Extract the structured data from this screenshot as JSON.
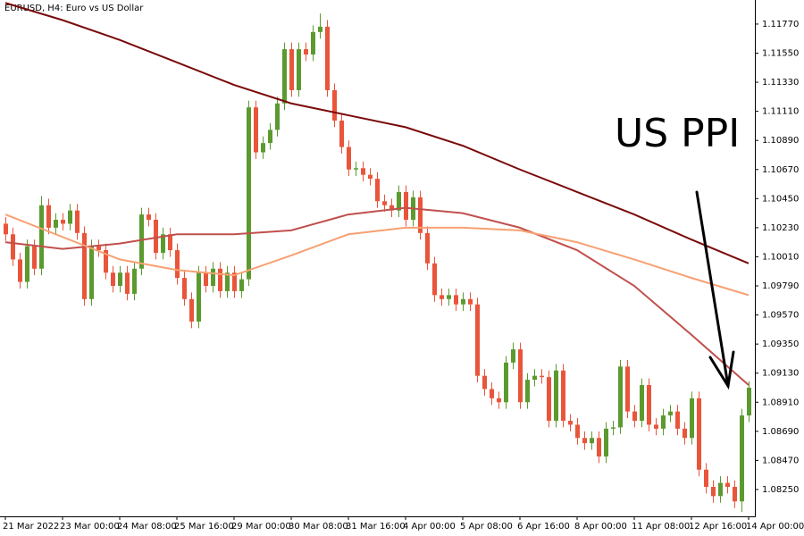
{
  "chart_data": {
    "type": "candlestick",
    "title": "EURUSD, H4:  Euro vs US Dollar",
    "annotation": "US PPI",
    "up_color": "#5b9a2f",
    "down_color": "#e9553a",
    "ylim": [
      1.08047,
      1.11952
    ],
    "xlim": [
      -0.75,
      104.875
    ],
    "yticks": [
      {
        "value": 1.1177,
        "label": "1.11770"
      },
      {
        "value": 1.1155,
        "label": "1.11550"
      },
      {
        "value": 1.1133,
        "label": "1.11330"
      },
      {
        "value": 1.1111,
        "label": "1.11110"
      },
      {
        "value": 1.1089,
        "label": "1.10890"
      },
      {
        "value": 1.1067,
        "label": "1.10670"
      },
      {
        "value": 1.1045,
        "label": "1.10450"
      },
      {
        "value": 1.1023,
        "label": "1.10230"
      },
      {
        "value": 1.1001,
        "label": "1.10010"
      },
      {
        "value": 1.0979,
        "label": "1.09790"
      },
      {
        "value": 1.0957,
        "label": "1.09570"
      },
      {
        "value": 1.0935,
        "label": "1.09350"
      },
      {
        "value": 1.0913,
        "label": "1.09130"
      },
      {
        "value": 1.0891,
        "label": "1.08910"
      },
      {
        "value": 1.0869,
        "label": "1.08690"
      },
      {
        "value": 1.0847,
        "label": "1.08470"
      },
      {
        "value": 1.0825,
        "label": "1.08250"
      }
    ],
    "xticks": [
      {
        "value": 0,
        "label": "21 Mar 2022"
      },
      {
        "value": 8,
        "label": "23 Mar 00:00"
      },
      {
        "value": 16,
        "label": "24 Mar 08:00"
      },
      {
        "value": 24,
        "label": "25 Mar 16:00"
      },
      {
        "value": 32,
        "label": "29 Mar 00:00"
      },
      {
        "value": 40,
        "label": "30 Mar 08:00"
      },
      {
        "value": 48,
        "label": "31 Mar 16:00"
      },
      {
        "value": 56,
        "label": "4 Apr 00:00"
      },
      {
        "value": 64,
        "label": "5 Apr 08:00"
      },
      {
        "value": 72,
        "label": "6 Apr 16:00"
      },
      {
        "value": 80,
        "label": "8 Apr 00:00"
      },
      {
        "value": 88,
        "label": "11 Apr 08:00"
      },
      {
        "value": 96,
        "label": "12 Apr 16:00"
      },
      {
        "value": 104,
        "label": "14 Apr 00:00"
      }
    ],
    "open": [
      1.1026,
      1.1018,
      1.0999,
      1.0982,
      1.1009,
      1.0992,
      1.104,
      1.1023,
      1.1029,
      1.1026,
      1.1036,
      1.1019,
      1.0969,
      1.1009,
      1.1006,
      1.0989,
      1.0979,
      1.0989,
      1.0973,
      1.0992,
      1.1033,
      1.1029,
      1.1004,
      1.1018,
      1.1006,
      1.0985,
      1.0969,
      1.0952,
      1.0989,
      1.0979,
      1.0992,
      1.0975,
      1.0989,
      1.0975,
      1.0984,
      1.1114,
      1.108,
      1.1087,
      1.1097,
      1.1117,
      1.1158,
      1.1127,
      1.1158,
      1.1154,
      1.1171,
      1.1175,
      1.1127,
      1.1104,
      1.1084,
      1.1067,
      1.1068,
      1.1063,
      1.106,
      1.1043,
      1.104,
      1.1036,
      1.105,
      1.1029,
      1.1046,
      1.1019,
      1.0996,
      1.0972,
      1.0969,
      1.0972,
      1.0965,
      1.0969,
      1.0965,
      1.0911,
      1.0901,
      1.0894,
      1.0891,
      1.0921,
      1.0931,
      1.0891,
      1.0908,
      1.0911,
      1.091,
      1.0877,
      1.0915,
      1.0877,
      1.0874,
      1.0864,
      1.086,
      1.0864,
      1.085,
      1.0871,
      1.0872,
      1.0918,
      1.0884,
      1.0877,
      1.0904,
      1.0874,
      1.0871,
      1.0881,
      1.0884,
      1.0871,
      1.0864,
      1.0894,
      1.084,
      1.0827,
      1.082,
      1.083,
      1.0827,
      1.0816,
      1.0881
    ],
    "high": [
      1.1031,
      1.1023,
      1.1004,
      1.1014,
      1.1014,
      1.1047,
      1.1045,
      1.1034,
      1.1034,
      1.1041,
      1.1041,
      1.1024,
      1.1014,
      1.1014,
      1.1011,
      1.0994,
      1.0994,
      1.0994,
      1.0997,
      1.1038,
      1.1038,
      1.1034,
      1.1023,
      1.1023,
      1.1011,
      1.099,
      1.0974,
      1.0994,
      1.0994,
      1.0997,
      1.0997,
      1.0994,
      1.0994,
      1.0989,
      1.1119,
      1.1119,
      1.1092,
      1.1102,
      1.1122,
      1.1163,
      1.1163,
      1.1163,
      1.1163,
      1.1176,
      1.1185,
      1.118,
      1.1132,
      1.1109,
      1.1089,
      1.1073,
      1.1073,
      1.1068,
      1.1065,
      1.1048,
      1.1045,
      1.1055,
      1.1055,
      1.1051,
      1.1051,
      1.1024,
      1.1001,
      1.0977,
      1.0977,
      1.0977,
      1.0974,
      1.0974,
      1.097,
      1.0916,
      1.0906,
      1.0899,
      1.0926,
      1.0936,
      1.0936,
      1.0913,
      1.0916,
      1.0916,
      1.0915,
      1.092,
      1.092,
      1.0882,
      1.0879,
      1.0869,
      1.0869,
      1.0869,
      1.0876,
      1.0877,
      1.0923,
      1.0923,
      1.0889,
      1.0909,
      1.0909,
      1.0879,
      1.0886,
      1.0889,
      1.0889,
      1.0876,
      1.0899,
      1.0899,
      1.0845,
      1.0832,
      1.0835,
      1.0835,
      1.0832,
      1.0886,
      1.0907
    ],
    "low": [
      1.1013,
      1.0994,
      1.0977,
      1.0977,
      1.0987,
      1.0987,
      1.1018,
      1.1018,
      1.1021,
      1.1021,
      1.1014,
      1.0964,
      1.0964,
      1.1001,
      1.0984,
      1.0974,
      1.0974,
      1.0968,
      1.0968,
      1.0987,
      1.1024,
      1.0999,
      1.0999,
      1.1001,
      1.098,
      1.0964,
      1.0947,
      1.0947,
      1.0974,
      1.0974,
      1.097,
      1.097,
      1.097,
      1.097,
      1.0979,
      1.1075,
      1.1075,
      1.1082,
      1.1092,
      1.1112,
      1.1122,
      1.1122,
      1.1149,
      1.1149,
      1.1166,
      1.1122,
      1.1099,
      1.1079,
      1.1062,
      1.1062,
      1.1058,
      1.1055,
      1.1038,
      1.1035,
      1.1031,
      1.1031,
      1.1024,
      1.1024,
      1.1014,
      1.0991,
      1.0967,
      1.0964,
      1.0964,
      1.096,
      1.096,
      1.096,
      1.0906,
      1.0896,
      1.0889,
      1.0886,
      1.0886,
      1.0916,
      1.0886,
      1.0886,
      1.0903,
      1.0905,
      1.0872,
      1.0872,
      1.0872,
      1.0869,
      1.0859,
      1.0855,
      1.0855,
      1.0845,
      1.0845,
      1.0866,
      1.0867,
      1.0879,
      1.0872,
      1.0872,
      1.0869,
      1.0866,
      1.0866,
      1.0876,
      1.0866,
      1.0859,
      1.0859,
      1.0835,
      1.0822,
      1.0815,
      1.0815,
      1.0822,
      1.0811,
      1.0808,
      1.0876
    ],
    "close": [
      1.1018,
      1.0999,
      1.0982,
      1.1009,
      1.0992,
      1.104,
      1.1023,
      1.1029,
      1.1026,
      1.1036,
      1.1019,
      1.0969,
      1.1009,
      1.1006,
      1.0989,
      1.0979,
      1.0989,
      1.0973,
      1.0992,
      1.1033,
      1.1029,
      1.1004,
      1.1018,
      1.1006,
      1.0985,
      1.0969,
      1.0952,
      1.0989,
      1.0979,
      1.0992,
      1.0975,
      1.0989,
      1.0975,
      1.0984,
      1.1114,
      1.108,
      1.1087,
      1.1097,
      1.1117,
      1.1158,
      1.1127,
      1.1158,
      1.1154,
      1.1171,
      1.1175,
      1.1127,
      1.1104,
      1.1084,
      1.1067,
      1.1068,
      1.1063,
      1.106,
      1.1043,
      1.104,
      1.1036,
      1.105,
      1.1029,
      1.1046,
      1.1019,
      1.0996,
      1.0972,
      1.0969,
      1.0972,
      1.0965,
      1.0969,
      1.0965,
      1.0911,
      1.0901,
      1.0894,
      1.0891,
      1.0921,
      1.0931,
      1.0891,
      1.0908,
      1.0911,
      1.091,
      1.0877,
      1.0915,
      1.0877,
      1.0874,
      1.0864,
      1.086,
      1.0864,
      1.085,
      1.0871,
      1.0872,
      1.0918,
      1.0884,
      1.0877,
      1.0904,
      1.0874,
      1.0871,
      1.0881,
      1.0884,
      1.0871,
      1.0864,
      1.0894,
      1.084,
      1.0827,
      1.082,
      1.083,
      1.0827,
      1.0816,
      1.0881,
      1.0902
    ],
    "lines": [
      {
        "color": "#7a0a0a",
        "x": [
          0,
          8,
          16,
          24,
          32,
          40,
          48,
          56,
          64,
          72,
          80,
          88,
          96,
          104
        ],
        "values": [
          1.1193,
          1.118,
          1.1165,
          1.1148,
          1.1131,
          1.1117,
          1.1108,
          1.1099,
          1.1085,
          1.1067,
          1.105,
          1.1033,
          1.1014,
          1.0996
        ]
      },
      {
        "color": "#c0504d",
        "x": [
          0,
          8,
          16,
          24,
          32,
          40,
          48,
          56,
          64,
          72,
          80,
          88,
          96,
          104
        ],
        "values": [
          1.1012,
          1.1007,
          1.1011,
          1.1018,
          1.1018,
          1.1021,
          1.1033,
          1.1038,
          1.1034,
          1.1023,
          1.1006,
          1.0979,
          1.0942,
          1.0904
        ]
      },
      {
        "color": "#f7a072",
        "x": [
          0,
          8,
          16,
          24,
          32,
          40,
          48,
          56,
          64,
          72,
          80,
          88,
          96,
          104
        ],
        "values": [
          1.1033,
          1.1016,
          1.0999,
          1.0991,
          1.0987,
          1.1002,
          1.1018,
          1.1023,
          1.1023,
          1.1021,
          1.1012,
          1.0999,
          1.0985,
          1.0972
        ]
      }
    ]
  }
}
